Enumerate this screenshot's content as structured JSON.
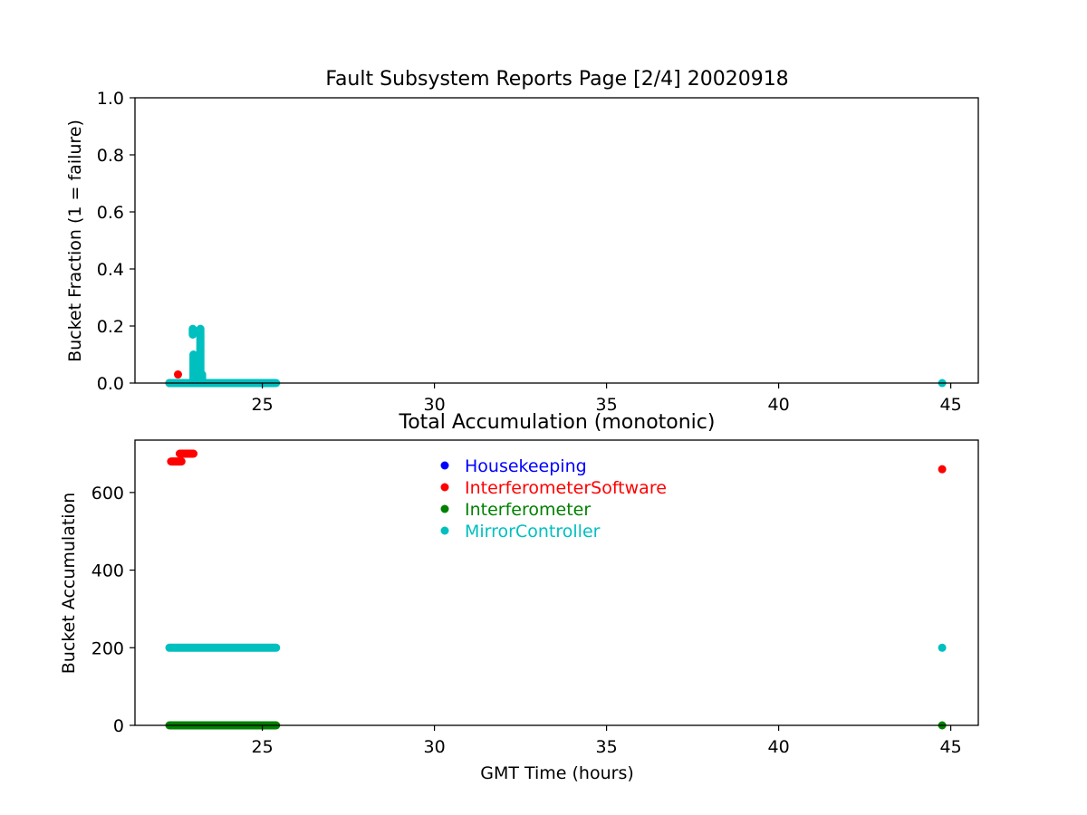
{
  "chart_data": [
    {
      "type": "scatter",
      "title": "Fault Subsystem Reports Page [2/4] 20020918",
      "xlabel": "",
      "ylabel": "Bucket Fraction (1 = failure)",
      "xlim": [
        21.3,
        45.8
      ],
      "ylim": [
        0,
        1.0
      ],
      "xticks": [
        "25",
        "30",
        "35",
        "40",
        "45"
      ],
      "yticks": [
        "0.0",
        "0.2",
        "0.4",
        "0.6",
        "0.8",
        "1.0"
      ],
      "grid": false,
      "series": [
        {
          "name": "InterferometerSoftware",
          "color": "#ff0000",
          "segments": [
            {
              "x_start": 22.55,
              "x_end": 22.55,
              "y": 0.03
            },
            {
              "x_start": 22.3,
              "x_end": 22.8,
              "y": 0.0
            }
          ]
        },
        {
          "name": "MirrorController",
          "color": "#00bfbf",
          "segments": [
            {
              "x_start": 22.3,
              "x_end": 25.4,
              "y": 0.0
            },
            {
              "x_start": 44.75,
              "x_end": 44.75,
              "y": 0.0
            }
          ],
          "bars": [
            {
              "x": 22.98,
              "y_start": 0.17,
              "y_end": 0.19
            },
            {
              "x": 23.0,
              "y_start": 0.0,
              "y_end": 0.1
            },
            {
              "x": 23.2,
              "y_start": 0.0,
              "y_end": 0.19
            },
            {
              "x": 23.25,
              "y_start": 0.0,
              "y_end": 0.03
            }
          ]
        }
      ]
    },
    {
      "type": "scatter",
      "title": "Total Accumulation (monotonic)",
      "xlabel": "GMT Time (hours)",
      "ylabel": "Bucket Accumulation",
      "xlim": [
        21.3,
        45.8
      ],
      "ylim": [
        0,
        735
      ],
      "xticks": [
        "25",
        "30",
        "35",
        "40",
        "45"
      ],
      "yticks": [
        "0",
        "200",
        "400",
        "600"
      ],
      "grid": false,
      "legend_position": "upper-center",
      "series": [
        {
          "name": "Housekeeping",
          "color": "#0000ff",
          "segments": []
        },
        {
          "name": "InterferometerSoftware",
          "color": "#ff0000",
          "segments": [
            {
              "x_start": 22.35,
              "x_end": 22.65,
              "y": 680
            },
            {
              "x_start": 22.6,
              "x_end": 23.0,
              "y": 700
            },
            {
              "x_start": 44.75,
              "x_end": 44.75,
              "y": 660
            }
          ]
        },
        {
          "name": "Interferometer",
          "color": "#008000",
          "segments": [
            {
              "x_start": 22.3,
              "x_end": 25.4,
              "y": 0
            },
            {
              "x_start": 44.75,
              "x_end": 44.75,
              "y": 0
            }
          ]
        },
        {
          "name": "MirrorController",
          "color": "#00bfbf",
          "segments": [
            {
              "x_start": 22.3,
              "x_end": 25.4,
              "y": 200
            },
            {
              "x_start": 44.75,
              "x_end": 44.75,
              "y": 200
            }
          ]
        }
      ]
    }
  ]
}
